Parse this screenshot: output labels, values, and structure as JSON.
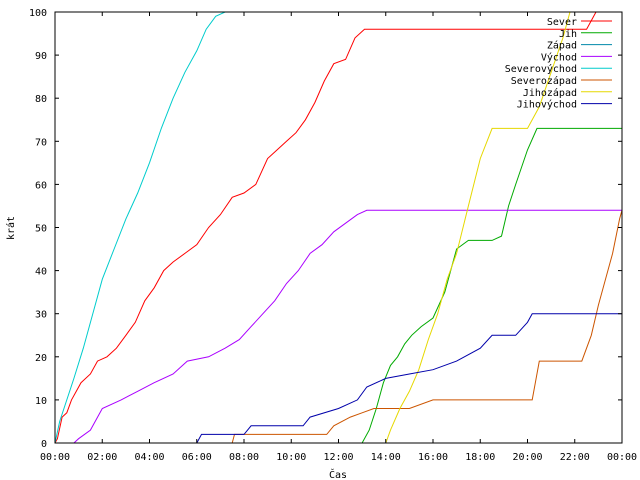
{
  "chart_data": {
    "type": "line",
    "xlabel": "Čas",
    "ylabel": "krát",
    "xlim": [
      0,
      24
    ],
    "ylim": [
      0,
      100
    ],
    "x_ticks": [
      "00:00",
      "02:00",
      "04:00",
      "06:00",
      "08:00",
      "10:00",
      "12:00",
      "14:00",
      "16:00",
      "18:00",
      "20:00",
      "22:00",
      "00:00"
    ],
    "y_ticks": [
      0,
      10,
      20,
      30,
      40,
      50,
      60,
      70,
      80,
      90,
      100
    ],
    "grid": false,
    "legend_position": "top-right",
    "series": [
      {
        "name": "Sever",
        "color": "#ff0000",
        "points": [
          [
            0,
            0
          ],
          [
            0.1,
            1
          ],
          [
            0.3,
            6
          ],
          [
            0.5,
            7
          ],
          [
            0.7,
            10
          ],
          [
            0.9,
            12
          ],
          [
            1.1,
            14
          ],
          [
            1.5,
            16
          ],
          [
            1.8,
            19
          ],
          [
            2.2,
            20
          ],
          [
            2.6,
            22
          ],
          [
            3.0,
            25
          ],
          [
            3.4,
            28
          ],
          [
            3.8,
            33
          ],
          [
            4.2,
            36
          ],
          [
            4.6,
            40
          ],
          [
            5.0,
            42
          ],
          [
            5.5,
            44
          ],
          [
            6.0,
            46
          ],
          [
            6.5,
            50
          ],
          [
            7.0,
            53
          ],
          [
            7.5,
            57
          ],
          [
            8.0,
            58
          ],
          [
            8.5,
            60
          ],
          [
            9.0,
            66
          ],
          [
            9.4,
            68
          ],
          [
            9.8,
            70
          ],
          [
            10.2,
            72
          ],
          [
            10.6,
            75
          ],
          [
            11.0,
            79
          ],
          [
            11.4,
            84
          ],
          [
            11.8,
            88
          ],
          [
            12.3,
            89
          ],
          [
            12.7,
            94
          ],
          [
            13.1,
            96
          ],
          [
            14.5,
            96
          ],
          [
            16.0,
            96
          ],
          [
            18.0,
            96
          ],
          [
            20.0,
            96
          ],
          [
            22.5,
            96
          ],
          [
            22.9,
            100
          ]
        ]
      },
      {
        "name": "Jih",
        "color": "#00aa00",
        "points": [
          [
            0,
            0
          ],
          [
            13.0,
            0
          ],
          [
            13.3,
            3
          ],
          [
            13.6,
            8
          ],
          [
            13.9,
            14
          ],
          [
            14.2,
            18
          ],
          [
            14.5,
            20
          ],
          [
            14.8,
            23
          ],
          [
            15.1,
            25
          ],
          [
            15.5,
            27
          ],
          [
            16.0,
            29
          ],
          [
            16.5,
            35
          ],
          [
            17.0,
            45
          ],
          [
            17.5,
            47
          ],
          [
            18.5,
            47
          ],
          [
            18.9,
            48
          ],
          [
            19.2,
            55
          ],
          [
            19.5,
            60
          ],
          [
            20.0,
            68
          ],
          [
            20.4,
            73
          ],
          [
            22.0,
            73
          ],
          [
            24.0,
            73
          ]
        ]
      },
      {
        "name": "Západ",
        "color": "#0088aa",
        "points": [
          [
            0,
            0
          ],
          [
            24,
            0
          ]
        ]
      },
      {
        "name": "Východ",
        "color": "#aa00ff",
        "points": [
          [
            0,
            0
          ],
          [
            0.8,
            0
          ],
          [
            1.0,
            1
          ],
          [
            1.5,
            3
          ],
          [
            2.0,
            8
          ],
          [
            2.8,
            10
          ],
          [
            3.5,
            12
          ],
          [
            4.2,
            14
          ],
          [
            5.0,
            16
          ],
          [
            5.6,
            19
          ],
          [
            6.5,
            20
          ],
          [
            7.2,
            22
          ],
          [
            7.8,
            24
          ],
          [
            8.3,
            27
          ],
          [
            8.8,
            30
          ],
          [
            9.3,
            33
          ],
          [
            9.8,
            37
          ],
          [
            10.3,
            40
          ],
          [
            10.8,
            44
          ],
          [
            11.3,
            46
          ],
          [
            11.8,
            49
          ],
          [
            12.3,
            51
          ],
          [
            12.8,
            53
          ],
          [
            13.2,
            54
          ],
          [
            16.0,
            54
          ],
          [
            20.0,
            54
          ],
          [
            24.0,
            54
          ]
        ]
      },
      {
        "name": "Severovýchod",
        "color": "#00cccc",
        "points": [
          [
            0,
            0
          ],
          [
            0.2,
            5
          ],
          [
            0.5,
            10
          ],
          [
            0.8,
            15
          ],
          [
            1.2,
            22
          ],
          [
            1.6,
            30
          ],
          [
            2.0,
            38
          ],
          [
            2.5,
            45
          ],
          [
            3.0,
            52
          ],
          [
            3.5,
            58
          ],
          [
            4.0,
            65
          ],
          [
            4.5,
            73
          ],
          [
            5.0,
            80
          ],
          [
            5.5,
            86
          ],
          [
            6.0,
            91
          ],
          [
            6.4,
            96
          ],
          [
            6.8,
            99
          ],
          [
            7.2,
            100
          ]
        ]
      },
      {
        "name": "Severozápad",
        "color": "#cc5500",
        "points": [
          [
            0,
            0
          ],
          [
            7.5,
            0
          ],
          [
            7.6,
            2
          ],
          [
            11.5,
            2
          ],
          [
            11.8,
            4
          ],
          [
            12.5,
            6
          ],
          [
            13.0,
            7
          ],
          [
            13.5,
            8
          ],
          [
            15.0,
            8
          ],
          [
            16.0,
            10
          ],
          [
            19.0,
            10
          ],
          [
            20.2,
            10
          ],
          [
            20.5,
            19
          ],
          [
            22.3,
            19
          ],
          [
            22.7,
            25
          ],
          [
            23.0,
            32
          ],
          [
            23.3,
            38
          ],
          [
            23.6,
            44
          ],
          [
            23.9,
            52
          ],
          [
            24.0,
            54
          ]
        ]
      },
      {
        "name": "Jihozápad",
        "color": "#e6d800",
        "points": [
          [
            0,
            0
          ],
          [
            14.0,
            0
          ],
          [
            14.2,
            3
          ],
          [
            14.6,
            8
          ],
          [
            15.0,
            12
          ],
          [
            15.4,
            17
          ],
          [
            15.8,
            24
          ],
          [
            16.2,
            30
          ],
          [
            16.6,
            38
          ],
          [
            17.0,
            44
          ],
          [
            17.5,
            55
          ],
          [
            18.0,
            66
          ],
          [
            18.5,
            73
          ],
          [
            20.0,
            73
          ],
          [
            20.5,
            78
          ],
          [
            21.0,
            86
          ],
          [
            21.5,
            94
          ],
          [
            21.8,
            100
          ]
        ]
      },
      {
        "name": "Jihovýchod",
        "color": "#0000aa",
        "points": [
          [
            0,
            0
          ],
          [
            6.0,
            0
          ],
          [
            6.2,
            2
          ],
          [
            8.0,
            2
          ],
          [
            8.3,
            4
          ],
          [
            10.5,
            4
          ],
          [
            10.8,
            6
          ],
          [
            12.0,
            8
          ],
          [
            12.8,
            10
          ],
          [
            13.2,
            13
          ],
          [
            14.0,
            15
          ],
          [
            15.0,
            16
          ],
          [
            16.0,
            17
          ],
          [
            17.0,
            19
          ],
          [
            18.0,
            22
          ],
          [
            18.5,
            25
          ],
          [
            19.5,
            25
          ],
          [
            20.0,
            28
          ],
          [
            20.2,
            30
          ],
          [
            24.0,
            30
          ]
        ]
      }
    ]
  }
}
